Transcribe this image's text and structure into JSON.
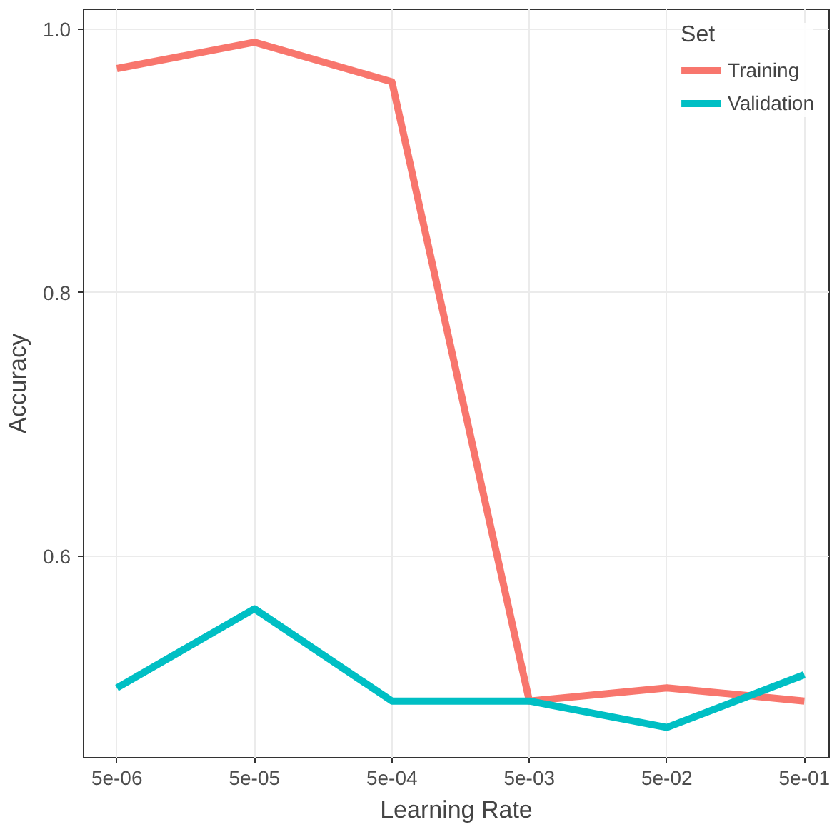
{
  "chart_data": {
    "type": "line",
    "xlabel": "Learning Rate",
    "ylabel": "Accuracy",
    "legend_title": "Set",
    "log": "x",
    "x": [
      5e-06,
      5e-05,
      0.0005,
      0.005,
      0.05,
      0.5
    ],
    "series": [
      {
        "name": "Training",
        "color": "#f8766d",
        "values": [
          0.97,
          0.99,
          0.96,
          0.49,
          0.5,
          0.49
        ]
      },
      {
        "name": "Validation",
        "color": "#00bfc4",
        "values": [
          0.5,
          0.56,
          0.49,
          0.49,
          0.47,
          0.51
        ]
      }
    ],
    "xlim": [
      2.86e-06,
      0.757
    ],
    "ylim": [
      0.447,
      1.015
    ],
    "xticks": [
      {
        "value": 5e-06,
        "label": "5e-06"
      },
      {
        "value": 5e-05,
        "label": "5e-05"
      },
      {
        "value": 0.0005,
        "label": "5e-04"
      },
      {
        "value": 0.005,
        "label": "5e-03"
      },
      {
        "value": 0.05,
        "label": "5e-02"
      },
      {
        "value": 0.5,
        "label": "5e-01"
      }
    ],
    "yticks": [
      0.6,
      0.8,
      {
        "value": 1.0,
        "label": "1.0"
      }
    ],
    "grid": true,
    "legend": "top right",
    "marker": "none",
    "line_style": "solid"
  }
}
